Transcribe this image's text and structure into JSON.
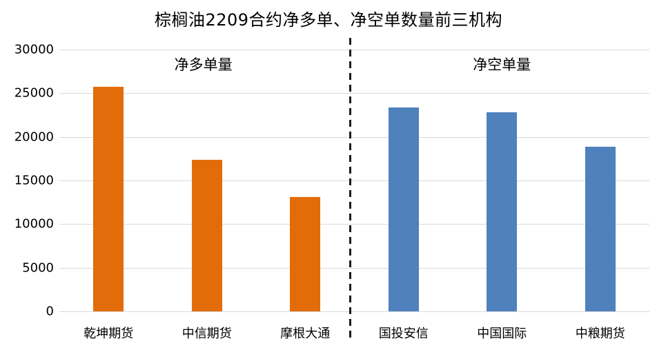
{
  "chart_data": {
    "type": "bar",
    "title": "棕榈油2209合约净多单、净空单数量前三机构",
    "sections": [
      {
        "label": "净多单量",
        "color": "#E36C0A",
        "label_center_pct": 24.4,
        "categories": [
          "乾坤期货",
          "中信期货",
          "摩根大通"
        ],
        "values": [
          25700,
          17400,
          13100
        ]
      },
      {
        "label": "净空单量",
        "color": "#4F81BD",
        "label_center_pct": 75.0,
        "categories": [
          "国投安信",
          "中国国际",
          "中粮期货"
        ],
        "values": [
          23400,
          22800,
          18900
        ]
      }
    ],
    "y_axis": {
      "min": 0,
      "max": 30000,
      "step": 5000,
      "tick_labels": [
        "0",
        "5000",
        "10000",
        "15000",
        "20000",
        "25000",
        "30000"
      ]
    },
    "xlabel": "",
    "ylabel": "",
    "grid": true,
    "gridline_color": "#D9D9D9",
    "separator": {
      "style": "dashed",
      "color": "#1A1A1A"
    },
    "legend_position": "none",
    "background": "#FFFFFF"
  }
}
